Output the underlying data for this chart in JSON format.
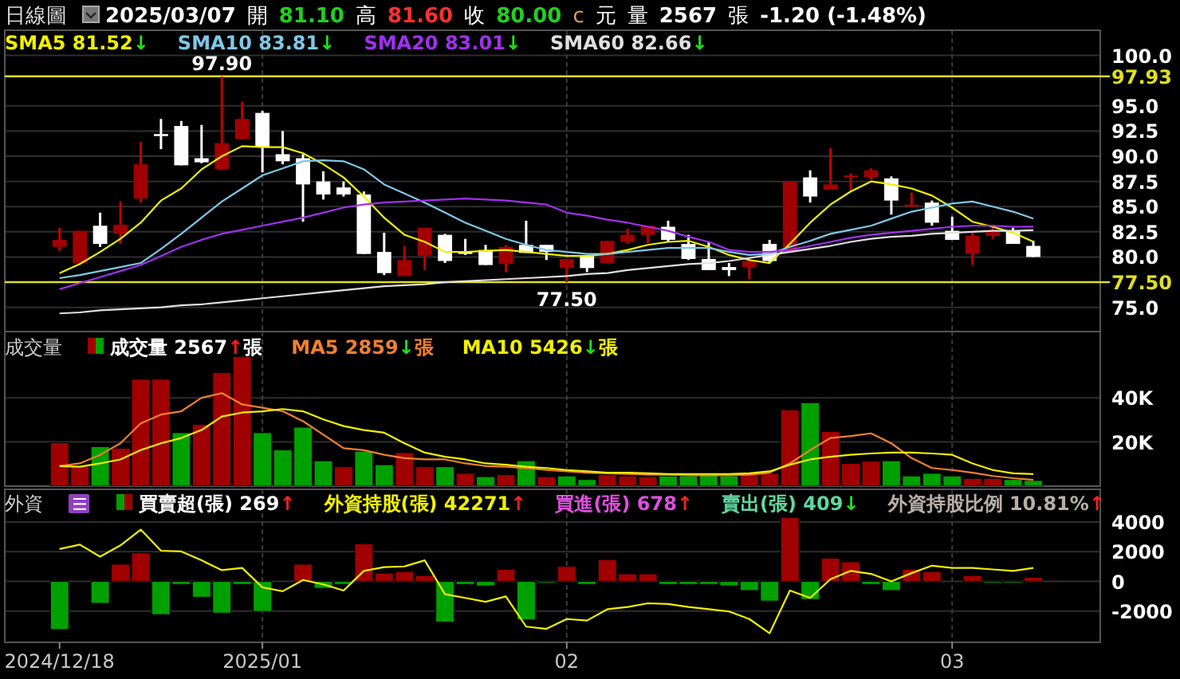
{
  "chart_data": [
    {
      "type": "candlestick",
      "title": "日線圖",
      "legend": "top left",
      "grid": true,
      "tick_labels": "y",
      "annotations": [
        "2025/03/07",
        "開",
        "81.10",
        "高",
        "81.60",
        "收",
        "80.00",
        "c",
        "元",
        "量",
        "2567",
        "張",
        "-1.20 (-1.48%)",
        {
          "text": "97.90",
          "y": 97.9
        },
        {
          "text": "77.50",
          "y": 77.5
        }
      ],
      "categories": [
        "2024/12/18",
        null,
        null,
        null,
        null,
        null,
        null,
        null,
        null,
        null,
        "2025/01",
        null,
        null,
        null,
        null,
        null,
        null,
        null,
        null,
        null,
        null,
        null,
        null,
        null,
        null,
        "02",
        null,
        null,
        null,
        null,
        null,
        null,
        null,
        null,
        null,
        null,
        null,
        null,
        null,
        null,
        null,
        null,
        null,
        null,
        "03",
        null,
        null,
        null,
        null
      ],
      "ohlc": [
        [
          81.0,
          82.9,
          80.6,
          81.7
        ],
        [
          79.4,
          82.6,
          79.3,
          82.6
        ],
        [
          83.1,
          84.4,
          81.0,
          81.3
        ],
        [
          82.3,
          85.5,
          81.3,
          83.2
        ],
        [
          85.8,
          91.4,
          85.4,
          89.2
        ],
        [
          92.2,
          93.7,
          90.7,
          92.0
        ],
        [
          93.0,
          93.5,
          89.1,
          89.1
        ],
        [
          89.8,
          93.1,
          89.3,
          89.4
        ],
        [
          88.7,
          97.9,
          88.6,
          91.3
        ],
        [
          91.7,
          95.4,
          91.7,
          93.7
        ],
        [
          94.3,
          94.5,
          88.4,
          90.9
        ],
        [
          90.2,
          92.5,
          89.2,
          89.5
        ],
        [
          89.8,
          90.2,
          83.5,
          87.2
        ],
        [
          87.5,
          88.5,
          85.7,
          86.2
        ],
        [
          86.9,
          87.5,
          86.0,
          86.2
        ],
        [
          86.2,
          86.5,
          80.3,
          80.3
        ],
        [
          80.5,
          82.4,
          78.2,
          78.4
        ],
        [
          78.1,
          81.1,
          78.1,
          79.7
        ],
        [
          80.1,
          82.9,
          78.7,
          82.9
        ],
        [
          82.2,
          82.3,
          79.4,
          79.6
        ],
        [
          80.5,
          81.8,
          80.2,
          80.3
        ],
        [
          80.7,
          81.2,
          79.2,
          79.2
        ],
        [
          79.3,
          81.2,
          78.5,
          81.0
        ],
        [
          81.2,
          83.6,
          80.4,
          80.4
        ],
        [
          81.2,
          81.2,
          79.7,
          80.5
        ],
        [
          78.9,
          79.8,
          77.5,
          79.8
        ],
        [
          80.1,
          80.1,
          78.5,
          78.9
        ],
        [
          79.4,
          81.6,
          79.4,
          81.6
        ],
        [
          81.5,
          82.8,
          81.3,
          82.2
        ],
        [
          82.2,
          83.1,
          81.4,
          83.1
        ],
        [
          83.0,
          83.6,
          81.5,
          81.7
        ],
        [
          81.3,
          82.2,
          79.7,
          79.8
        ],
        [
          79.8,
          81.5,
          78.7,
          78.7
        ],
        [
          79.0,
          79.4,
          78.1,
          78.7
        ],
        [
          79.0,
          79.9,
          77.8,
          79.6
        ],
        [
          81.3,
          81.7,
          79.4,
          79.6
        ],
        [
          80.5,
          87.5,
          80.5,
          87.5
        ],
        [
          87.9,
          88.6,
          85.4,
          86.0
        ],
        [
          86.7,
          90.8,
          86.7,
          87.2
        ],
        [
          87.9,
          88.3,
          86.6,
          88.1
        ],
        [
          87.9,
          88.8,
          87.7,
          88.6
        ],
        [
          87.8,
          88.0,
          84.2,
          85.6
        ],
        [
          85.0,
          86.4,
          85.0,
          85.2
        ],
        [
          85.4,
          85.6,
          83.1,
          83.4
        ],
        [
          82.6,
          84.0,
          81.7,
          81.7
        ],
        [
          80.3,
          82.4,
          79.2,
          82.1
        ],
        [
          82.1,
          83.2,
          81.8,
          82.6
        ],
        [
          82.6,
          82.9,
          81.3,
          81.3
        ],
        [
          81.1,
          81.6,
          80.0,
          80.0
        ]
      ],
      "series": [
        {
          "name": "SMA5 81.52↓",
          "type": "line",
          "color": "#f0f000",
          "values": [
            78.4,
            79.3,
            80.5,
            81.8,
            83.4,
            85.6,
            86.8,
            88.7,
            90.0,
            91.0,
            90.9,
            90.9,
            90.3,
            89.2,
            87.9,
            86.0,
            83.9,
            82.2,
            81.5,
            80.5,
            80.5,
            80.6,
            80.7,
            80.5,
            80.3,
            80.1,
            80.1,
            80.3,
            80.7,
            81.2,
            81.5,
            81.6,
            81.0,
            80.2,
            79.7,
            79.4,
            81.3,
            83.4,
            85.2,
            86.5,
            87.5,
            87.2,
            86.8,
            86.1,
            84.9,
            83.5,
            83.0,
            82.4,
            81.52
          ]
        },
        {
          "name": "SMA10 83.81↓",
          "type": "line",
          "color": "#7ec8e8",
          "values": [
            77.9,
            78.2,
            78.6,
            79.0,
            79.4,
            80.8,
            82.3,
            83.9,
            85.5,
            86.8,
            88.1,
            88.8,
            89.5,
            89.6,
            89.5,
            88.7,
            87.2,
            86.3,
            85.4,
            84.4,
            83.4,
            82.6,
            81.8,
            81.2,
            80.7,
            80.5,
            80.3,
            80.3,
            80.5,
            80.7,
            80.9,
            80.9,
            80.9,
            80.5,
            80.2,
            80.3,
            81.0,
            81.6,
            82.3,
            82.7,
            83.1,
            83.8,
            84.5,
            84.9,
            85.3,
            85.5,
            85.0,
            84.5,
            83.81
          ]
        },
        {
          "name": "SMA20 83.01↓",
          "type": "line",
          "color": "#a030f0",
          "values": [
            76.8,
            77.4,
            78.0,
            78.6,
            79.2,
            80.1,
            81.0,
            81.7,
            82.3,
            82.7,
            83.1,
            83.5,
            83.9,
            84.4,
            84.9,
            85.2,
            85.4,
            85.5,
            85.6,
            85.7,
            85.8,
            85.7,
            85.6,
            85.4,
            85.2,
            84.4,
            84.1,
            83.7,
            83.4,
            83.0,
            82.6,
            82.0,
            81.5,
            80.7,
            80.5,
            80.5,
            80.7,
            81.1,
            81.5,
            81.9,
            82.2,
            82.4,
            82.6,
            82.8,
            83.0,
            83.1,
            83.1,
            83.0,
            83.01
          ]
        },
        {
          "name": "SMA60 82.66↓",
          "type": "line",
          "color": "#e0e0e0",
          "values": [
            74.4,
            74.5,
            74.7,
            74.8,
            74.9,
            75.0,
            75.2,
            75.3,
            75.5,
            75.7,
            75.9,
            76.1,
            76.3,
            76.5,
            76.7,
            76.9,
            77.1,
            77.2,
            77.3,
            77.5,
            77.6,
            77.7,
            77.8,
            77.9,
            78.0,
            78.1,
            78.3,
            78.4,
            78.7,
            78.9,
            79.1,
            79.3,
            79.4,
            79.6,
            79.9,
            80.2,
            80.5,
            80.8,
            81.1,
            81.5,
            81.8,
            82.0,
            82.1,
            82.3,
            82.4,
            82.5,
            82.6,
            82.6,
            82.66
          ]
        }
      ],
      "ylim": [
        72.6,
        102.5
      ],
      "yticks": [
        {
          "value": 75,
          "label": "75.0"
        },
        {
          "value": 80,
          "label": "80.0"
        },
        {
          "value": 82.5,
          "label": "82.5"
        },
        {
          "value": 85,
          "label": "85.0"
        },
        {
          "value": 87.5,
          "label": "87.5"
        },
        {
          "value": 90,
          "label": "90.0"
        },
        {
          "value": 92.5,
          "label": "92.5"
        },
        {
          "value": 95,
          "label": "95.0"
        },
        {
          "value": 100,
          "label": "100.0"
        }
      ],
      "ref_lines": [
        {
          "axis": "y",
          "value": 97.93,
          "label": "97.93",
          "color": "#e0e020"
        },
        {
          "axis": "y",
          "value": 77.5,
          "label": "77.50",
          "color": "#e0e020"
        }
      ]
    },
    {
      "type": "bar",
      "title": "成交量",
      "legend": "top left",
      "grid": true,
      "tick_labels": "y",
      "categories": [
        "2024/12/18",
        null,
        null,
        null,
        null,
        null,
        null,
        null,
        null,
        null,
        "2025/01",
        null,
        null,
        null,
        null,
        null,
        null,
        null,
        null,
        null,
        null,
        null,
        null,
        null,
        null,
        "02",
        null,
        null,
        null,
        null,
        null,
        null,
        null,
        null,
        null,
        null,
        null,
        null,
        null,
        null,
        null,
        null,
        null,
        null,
        "03",
        null,
        null,
        null,
        null
      ],
      "series": [
        {
          "name": "成交量 2567↑張",
          "values": [
            19700,
            9100,
            17900,
            17200,
            48400,
            48400,
            24200,
            27900,
            51400,
            58700,
            24200,
            16400,
            26700,
            11500,
            8800,
            15800,
            9700,
            15200,
            8800,
            8800,
            5800,
            4300,
            5200,
            11500,
            4300,
            4600,
            3000,
            5200,
            4600,
            4300,
            4600,
            4600,
            5200,
            4600,
            5800,
            5800,
            34500,
            37800,
            24800,
            10300,
            11300,
            11500,
            4600,
            5800,
            4600,
            3500,
            3500,
            3000,
            2567
          ],
          "colors": [
            "#a00000",
            "#a00000",
            "#00a000",
            "#a00000",
            "#a00000",
            "#a00000",
            "#00a000",
            "#a00000",
            "#a00000",
            "#a00000",
            "#00a000",
            "#00a000",
            "#00a000",
            "#00a000",
            "#a00000",
            "#00a000",
            "#00a000",
            "#a00000",
            "#a00000",
            "#00a000",
            "#a00000",
            "#00a000",
            "#a00000",
            "#00a000",
            "#a00000",
            "#00a000",
            "#00a000",
            "#a00000",
            "#a00000",
            "#a00000",
            "#00a000",
            "#00a000",
            "#00a000",
            "#00a000",
            "#a00000",
            "#a00000",
            "#a00000",
            "#00a000",
            "#a00000",
            "#a00000",
            "#a00000",
            "#00a000",
            "#00a000",
            "#00a000",
            "#00a000",
            "#a00000",
            "#a00000",
            "#00a000",
            "#00a000"
          ]
        },
        {
          "name": "MA5 2859↓張",
          "type": "line",
          "color": "#f08030",
          "values": [
            9100,
            10300,
            14200,
            19400,
            28400,
            32400,
            33900,
            40000,
            42100,
            37000,
            35500,
            33900,
            29400,
            23300,
            17200,
            16300,
            14200,
            12700,
            12100,
            12100,
            10300,
            9100,
            8800,
            8200,
            7300,
            6700,
            6100,
            5800,
            5500,
            5200,
            5200,
            4900,
            4900,
            4900,
            5200,
            6100,
            10300,
            16300,
            21800,
            22700,
            23900,
            19400,
            12700,
            8200,
            7300,
            6100,
            4600,
            3600,
            2859
          ]
        },
        {
          "name": "MA10 5426↓張",
          "type": "line",
          "color": "#f0f000",
          "values": [
            9100,
            8800,
            10300,
            12100,
            16300,
            19400,
            21800,
            25400,
            31500,
            33300,
            33900,
            34900,
            33900,
            30200,
            27200,
            25400,
            24200,
            19400,
            15200,
            13300,
            12100,
            10300,
            9700,
            8800,
            8200,
            7300,
            6700,
            6100,
            6100,
            5800,
            5500,
            5500,
            5500,
            5500,
            5800,
            6700,
            9700,
            12100,
            13300,
            14200,
            14800,
            15200,
            15200,
            14800,
            14200,
            10300,
            7300,
            5800,
            5426
          ]
        }
      ],
      "ylim": [
        0,
        70000
      ],
      "yticks": [
        {
          "value": 20000,
          "label": "20K"
        },
        {
          "value": 40000,
          "label": "40K"
        }
      ]
    },
    {
      "type": "bar",
      "title": "外資",
      "legend": "top left",
      "grid": true,
      "annotations": [
        "買進(張) 678↑",
        "賣出(張) 409↓",
        "外資持股比例 10.81%↑"
      ],
      "categories": [
        "2024/12/18",
        null,
        null,
        null,
        null,
        null,
        null,
        null,
        null,
        null,
        "2025/01",
        null,
        null,
        null,
        null,
        null,
        null,
        null,
        null,
        null,
        null,
        null,
        null,
        null,
        null,
        "02",
        null,
        null,
        null,
        null,
        null,
        null,
        null,
        null,
        null,
        null,
        null,
        null,
        null,
        null,
        null,
        null,
        null,
        null,
        "03",
        null,
        null,
        null,
        null
      ],
      "series": [
        {
          "name": "買賣超(張) 269↑",
          "values": [
            -3240,
            null,
            -1470,
            1160,
            1920,
            -2230,
            -200,
            -1060,
            -2130,
            -200,
            -2020,
            null,
            1160,
            -460,
            -200,
            2530,
            560,
            660,
            400,
            -2730,
            -200,
            -300,
            810,
            -2580,
            -100,
            1010,
            -200,
            1470,
            510,
            510,
            -200,
            -200,
            -200,
            -300,
            -610,
            -1320,
            4300,
            -1210,
            1570,
            1320,
            -200,
            -610,
            810,
            660,
            null,
            400,
            -100,
            -100,
            269
          ],
          "colors": [
            "#00a000",
            null,
            "#00a000",
            "#a00000",
            "#a00000",
            "#00a000",
            "#00a000",
            "#00a000",
            "#00a000",
            "#00a000",
            "#00a000",
            null,
            "#a00000",
            "#00a000",
            "#00a000",
            "#a00000",
            "#a00000",
            "#a00000",
            "#a00000",
            "#00a000",
            "#00a000",
            "#00a000",
            "#a00000",
            "#00a000",
            "#00a000",
            "#a00000",
            "#00a000",
            "#a00000",
            "#a00000",
            "#a00000",
            "#00a000",
            "#00a000",
            "#00a000",
            "#00a000",
            "#00a000",
            "#00a000",
            "#a00000",
            "#00a000",
            "#a00000",
            "#a00000",
            "#00a000",
            "#00a000",
            "#a00000",
            "#a00000",
            null,
            "#a00000",
            "#00a000",
            "#00a000",
            "#a00000"
          ]
        },
        {
          "name": "外資持股(張) 42271↑",
          "type": "line",
          "color": "#f0f000",
          "values": [
            2180,
            2480,
            1670,
            2430,
            3490,
            2070,
            2020,
            1420,
            760,
            910,
            -400,
            -660,
            100,
            -200,
            -610,
            710,
            960,
            1010,
            1420,
            -860,
            -1110,
            -1370,
            -1010,
            -3040,
            -3190,
            -2530,
            -2630,
            -1870,
            -1720,
            -1470,
            -1520,
            -1720,
            -1870,
            -2020,
            -2530,
            -3490,
            -610,
            -1110,
            150,
            710,
            510,
            0,
            560,
            1060,
            910,
            910,
            810,
            710,
            910
          ]
        }
      ],
      "ylim": [
        -4100,
        6200
      ],
      "yticks": [
        4000,
        2000,
        0,
        -2000
      ]
    }
  ]
}
